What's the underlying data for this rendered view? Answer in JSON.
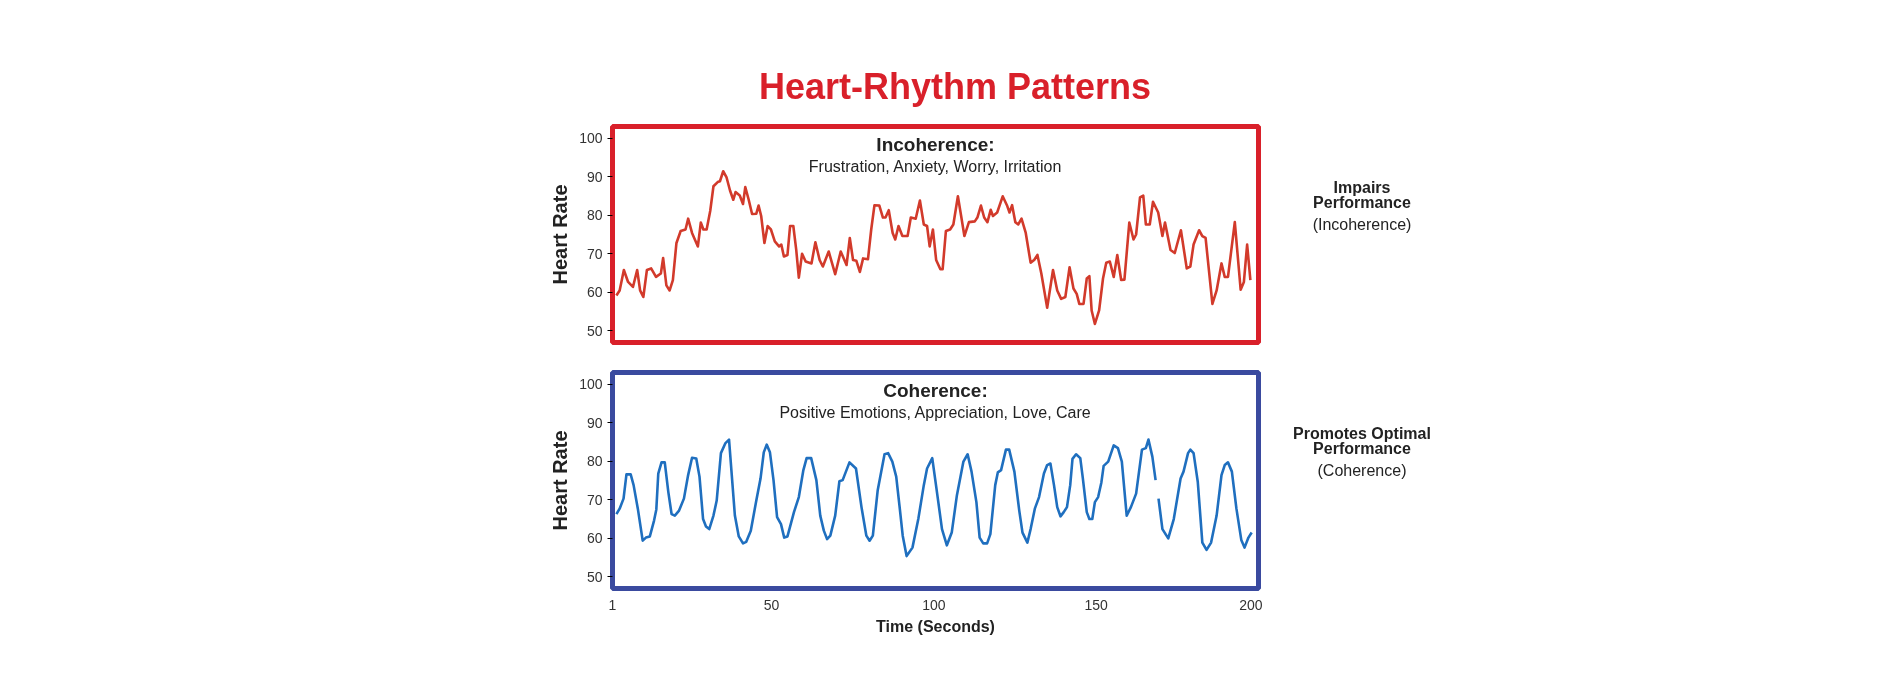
{
  "chart_data": [
    {
      "type": "line",
      "title": "Heart-Rhythm Patterns",
      "ylabel": "Heart Rate",
      "xlim": [
        1,
        200
      ],
      "xticks": [
        1,
        50,
        100,
        150,
        200
      ],
      "ylim": [
        47,
        103
      ],
      "yticks": [
        50,
        60,
        70,
        80,
        90,
        100
      ],
      "tick_labels": "y",
      "grid": false,
      "marker": "none",
      "line_style": "solid",
      "annotations": [
        "Incoherence:",
        "Frustration, Anxiety, Worry, Irritation",
        "Impairs Performance",
        "(Incoherence)"
      ],
      "x": [
        2.2,
        3.2,
        4.5,
        5.8,
        7.3,
        8.6,
        9.5,
        10.5,
        11.6,
        12.9,
        14.4,
        15.9,
        16.6,
        17.6,
        18.6,
        19.6,
        20.7,
        22,
        23.5,
        24.3,
        25.5,
        27.3,
        28.2,
        29,
        30,
        31.1,
        32.1,
        33.4,
        34.1,
        35.1,
        36.1,
        37.2,
        38.2,
        38.9,
        40.2,
        41.2,
        41.9,
        42.9,
        44,
        45.3,
        46,
        46.8,
        47.8,
        48.8,
        49.8,
        51,
        52.3,
        53,
        53.8,
        54.9,
        55.7,
        56.7,
        57.6,
        58.4,
        59.4,
        60.5,
        62.3,
        63.5,
        64.8,
        65.8,
        67.6,
        69.6,
        71.3,
        73.1,
        74.1,
        75.1,
        76.1,
        77.2,
        78.2,
        79.7,
        80.7,
        81.7,
        83.2,
        84.3,
        85.1,
        86.1,
        87.3,
        88.1,
        89.1,
        90.3,
        91.9,
        92.9,
        94.4,
        95.7,
        96.9,
        97.9,
        98.7,
        99.7,
        100.7,
        102,
        102.7,
        103.7,
        105,
        106,
        107.4,
        108.4,
        109.4,
        110.8,
        112.6,
        113.4,
        114.5,
        115.5,
        116.5,
        117.5,
        118.2,
        119.5,
        121.2,
        122.5,
        123.3,
        124.1,
        125.1,
        126,
        127,
        128.3,
        129.8,
        130.9,
        131.9,
        133.1,
        134.9,
        136.7,
        138,
        139.2,
        140.5,
        141.8,
        143,
        144,
        144.8,
        146.1,
        147.1,
        147.9,
        148.6,
        149.6,
        150.9,
        152.1,
        153.1,
        154.2,
        155.4,
        156.5,
        157.7,
        158.7,
        160.2,
        161.5,
        162.3,
        163.5,
        164.5,
        165.3,
        166.5,
        167.5,
        169.1,
        170.4,
        171.2,
        172.9,
        174.2,
        176.1,
        177.9,
        179,
        180,
        181.7,
        182.7,
        183.7,
        185.8,
        187.1,
        188.6,
        189.6,
        190.6,
        192.7,
        194.5,
        195.5,
        196.5,
        197.5
      ],
      "series": [
        {
          "color": "#d23a2b",
          "values": [
            59.2,
            60.5,
            65.8,
            62.7,
            61.4,
            65.8,
            60.5,
            58.8,
            65.8,
            66.2,
            64,
            64.9,
            68.9,
            61.8,
            60.5,
            63.2,
            72.8,
            75.9,
            76.3,
            79.1,
            75.4,
            71.9,
            78.1,
            76.3,
            76.3,
            81.1,
            87.5,
            88.6,
            88.8,
            91.4,
            89.9,
            86.4,
            84,
            86,
            85.1,
            82.9,
            87.3,
            84.2,
            80.3,
            80.4,
            82.5,
            79.8,
            72.8,
            77.2,
            76.3,
            73.2,
            71.9,
            72.4,
            69.3,
            69.7,
            77.2,
            77.2,
            71,
            63.8,
            70,
            68,
            67.5,
            73,
            68.4,
            66.7,
            70.6,
            64.7,
            70.6,
            67.1,
            74.1,
            68.4,
            68.2,
            65.3,
            68.8,
            68.6,
            76.3,
            82.6,
            82.5,
            79.4,
            79.4,
            81.3,
            75.4,
            73.7,
            77.2,
            74.6,
            74.6,
            79.4,
            79.1,
            83.8,
            77.6,
            77.2,
            71.9,
            76.3,
            68.4,
            66,
            66,
            75.9,
            76.3,
            77.6,
            84.9,
            79.8,
            74.6,
            78.2,
            78.4,
            79.4,
            82.5,
            79.4,
            78.2,
            81.4,
            79.8,
            80.7,
            84.9,
            82.6,
            80.7,
            82.6,
            78.2,
            77.6,
            79.1,
            75.4,
            67.7,
            68.4,
            69.7,
            64.9,
            56,
            65.8,
            60.5,
            58.3,
            58.8,
            66.5,
            61,
            59.6,
            57,
            57,
            63.6,
            64.2,
            55.3,
            51.8,
            55.3,
            63.6,
            67.7,
            68,
            64,
            69.7,
            63.2,
            63.3,
            78.1,
            73.7,
            75,
            84.6,
            85.1,
            77.6,
            77.6,
            83.5,
            80.7,
            74.6,
            78.1,
            71,
            70.2,
            76.1,
            66.2,
            66.7,
            72.4,
            76.1,
            74.6,
            74.1,
            57,
            60.5,
            67.5,
            64,
            64,
            78.2,
            60.7,
            62.7,
            72.4,
            63.2
          ]
        }
      ]
    },
    {
      "type": "line",
      "ylabel": "Heart Rate",
      "xlabel": "Time (Seconds)",
      "xlim": [
        1,
        200
      ],
      "xticks": [
        1,
        50,
        100,
        150,
        200
      ],
      "ylim": [
        47,
        103
      ],
      "yticks": [
        50,
        60,
        70,
        80,
        90,
        100
      ],
      "grid": false,
      "marker": "none",
      "line_style": "solid",
      "annotations": [
        "Coherence:",
        "Positive Emotions, Appreciation, Love, Care",
        "Promotes Optimal Performance",
        "(Coherence)"
      ],
      "x": [
        2.2,
        3.2,
        4.4,
        5.3,
        6.6,
        7.5,
        8.8,
        10.3,
        11.3,
        12.5,
        13.8,
        14.5,
        15.1,
        16.1,
        17.1,
        18.2,
        19.2,
        20.2,
        21.5,
        23,
        24.3,
        25.5,
        26.8,
        27.8,
        28.9,
        29.8,
        30.8,
        32.1,
        33.1,
        34.4,
        35.8,
        36.9,
        38.7,
        39.9,
        41.2,
        42.2,
        43.6,
        45.3,
        46.6,
        47.6,
        48.5,
        49.5,
        50.6,
        51.7,
        52.9,
        53.9,
        54.9,
        56.9,
        58.4,
        59.8,
        60.8,
        62.2,
        63.8,
        65,
        66.1,
        67.1,
        68.1,
        69.6,
        70.9,
        71.9,
        74,
        76,
        77.7,
        79.2,
        80.2,
        81.2,
        82.7,
        84.8,
        85.9,
        87.2,
        88.4,
        89.4,
        90.4,
        91.6,
        93.4,
        95.2,
        96.9,
        97.9,
        99.5,
        100.8,
        102.5,
        104,
        105.5,
        107.1,
        109.1,
        110.4,
        111.6,
        113.1,
        114.1,
        115.2,
        116.4,
        117.4,
        118.9,
        119.7,
        120.7,
        122.2,
        123.2,
        124.8,
        126.3,
        127.3,
        128.8,
        129.8,
        131.1,
        132.4,
        133.9,
        134.9,
        135.9,
        137,
        138,
        139,
        140,
        141,
        142,
        142.7,
        143.8,
        145.1,
        145.9,
        147.1,
        147.9,
        148.8,
        149.6,
        150.6,
        151.6,
        152.3,
        153.7,
        155.4,
        156.7,
        157.9,
        159.4,
        160.7,
        162.3,
        164.1,
        165.3,
        166.1,
        167.3,
        168.3,
        168.7,
        169.2,
        170.4,
        172.2,
        173.9,
        176,
        176.9,
        178.3,
        179,
        180,
        181.3,
        182.7,
        184,
        185.4,
        187.1,
        188.6,
        189.6,
        190.6,
        191.8,
        193.2,
        194.7,
        195.7,
        196.9,
        197.9
      ],
      "series": [
        {
          "color": "#1f6fbf",
          "values": [
            66.3,
            67.7,
            70.3,
            76.6,
            76.6,
            73.8,
            67.7,
            59.4,
            60.2,
            60.5,
            64.6,
            67.5,
            76.8,
            79.7,
            79.7,
            72,
            66.3,
            65.9,
            67.2,
            70.3,
            76.4,
            80.9,
            80.7,
            76,
            65,
            63.1,
            62.4,
            65.9,
            69.8,
            82.1,
            84.7,
            85.6,
            65.9,
            60.5,
            58.7,
            59.1,
            62,
            69.8,
            75.5,
            82.3,
            84.3,
            82.3,
            75.1,
            65.5,
            63.7,
            60.2,
            60.5,
            66.8,
            70.7,
            77.7,
            80.8,
            80.8,
            75.1,
            65.9,
            62,
            59.8,
            60.7,
            65.9,
            74.8,
            75.1,
            79.7,
            78.1,
            68.1,
            60.7,
            59.4,
            60.7,
            72.5,
            81.8,
            82.1,
            79.9,
            76,
            68.5,
            60.7,
            55.4,
            57.6,
            65,
            73.8,
            78.1,
            80.8,
            72.9,
            62.4,
            58.2,
            61.5,
            71.2,
            79.9,
            81.8,
            77.3,
            69.4,
            60.2,
            58.7,
            58.7,
            61.1,
            73.8,
            77.1,
            77.7,
            83,
            83,
            77.3,
            67.2,
            61.5,
            58.9,
            62.4,
            67.7,
            70.7,
            76.8,
            79,
            79.4,
            73.8,
            68.1,
            65.7,
            66.8,
            68.1,
            73.8,
            80.6,
            81.8,
            80.8,
            75.5,
            66.8,
            65,
            65,
            69.4,
            70.7,
            74.5,
            78.8,
            79.9,
            84.1,
            83.4,
            79.9,
            65.9,
            68.1,
            71.6,
            83,
            83.4,
            85.6,
            81.2,
            75.1,
            null,
            70.3,
            62.4,
            60,
            65,
            75.5,
            77.3,
            82.1,
            83,
            82.1,
            74.6,
            58.9,
            57,
            58.9,
            65.9,
            76.4,
            79,
            79.7,
            77.3,
            67.7,
            59.6,
            57.6,
            60.2,
            61.5
          ]
        }
      ]
    }
  ]
}
